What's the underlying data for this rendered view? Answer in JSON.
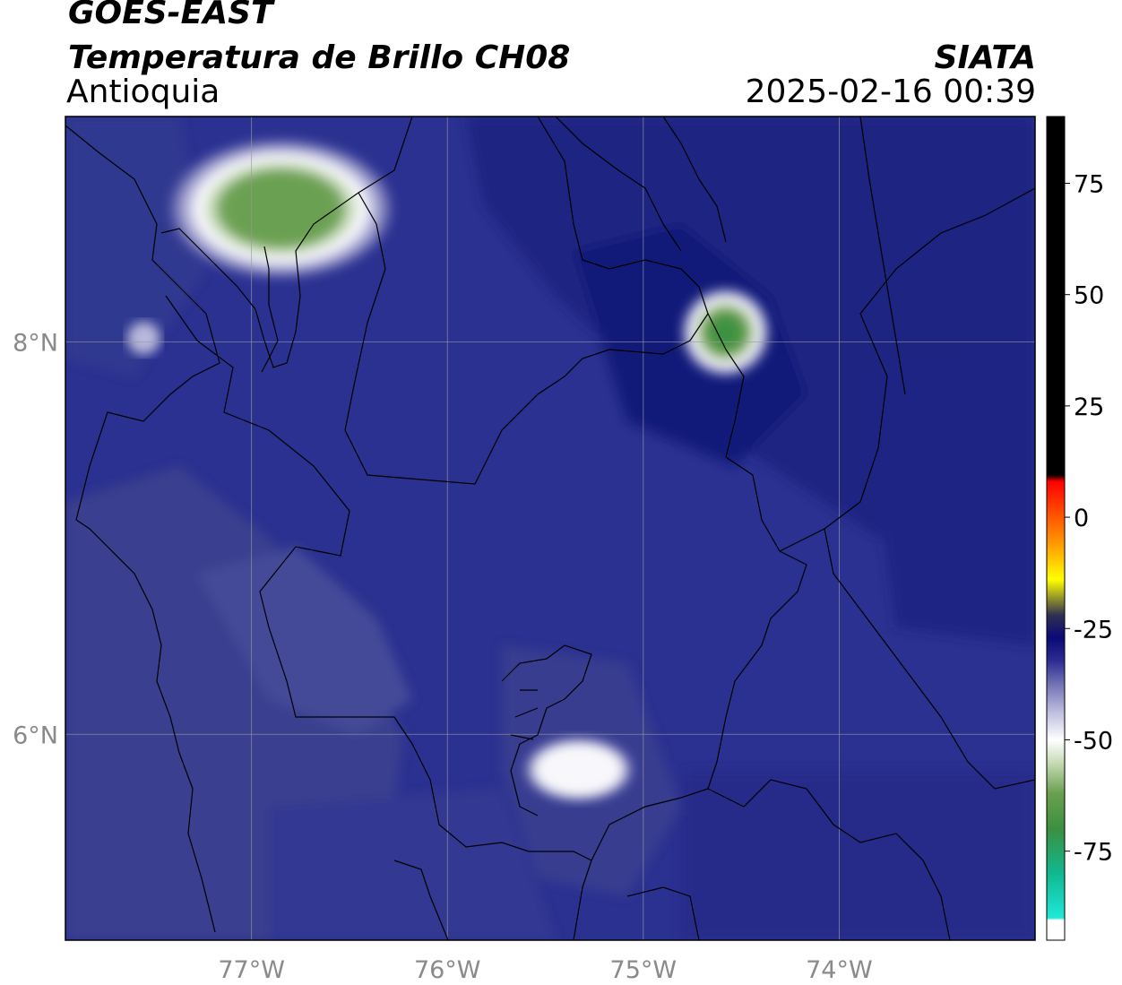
{
  "header": {
    "satellite": "GOES-EAST",
    "product": "Temperatura de Brillo CH08",
    "region": "Antioquia",
    "agency": "SIATA",
    "datetime": "2025-02-16 00:39"
  },
  "map": {
    "lon_range": [
      -77.95,
      -73.0
    ],
    "lat_range": [
      4.95,
      9.15
    ],
    "lon_ticks": [
      {
        "value": -77,
        "label": "77°W"
      },
      {
        "value": -76,
        "label": "76°W"
      },
      {
        "value": -75,
        "label": "75°W"
      },
      {
        "value": -74,
        "label": "74°W"
      }
    ],
    "lat_ticks": [
      {
        "value": 8,
        "label": "8°N"
      },
      {
        "value": 6,
        "label": "6°N"
      }
    ],
    "background_color": "#2b3190",
    "cold_cloud_features": [
      {
        "lon": -76.85,
        "lat": 8.68,
        "rx_deg": 0.45,
        "ry_deg": 0.28,
        "peak": -62
      },
      {
        "lon": -74.58,
        "lat": 8.05,
        "rx_deg": 0.18,
        "ry_deg": 0.18,
        "peak": -66
      },
      {
        "lon": -75.33,
        "lat": 5.82,
        "rx_deg": 0.22,
        "ry_deg": 0.13,
        "peak": -50
      },
      {
        "lon": -77.55,
        "lat": 8.02,
        "rx_deg": 0.07,
        "ry_deg": 0.07,
        "peak": -45
      }
    ]
  },
  "colorbar": {
    "vmin": -95,
    "vmax": 90,
    "ticks": [
      {
        "value": 75,
        "label": "75"
      },
      {
        "value": 50,
        "label": "50"
      },
      {
        "value": 25,
        "label": "25"
      },
      {
        "value": 0,
        "label": "0"
      },
      {
        "value": -25,
        "label": "-25"
      },
      {
        "value": -50,
        "label": "-50"
      },
      {
        "value": -75,
        "label": "-75"
      }
    ],
    "stops": [
      {
        "value": -95,
        "color": "#ffffff"
      },
      {
        "value": -90.5,
        "color": "#ffffff"
      },
      {
        "value": -90,
        "color": "#20e8d8"
      },
      {
        "value": -80,
        "color": "#10b890"
      },
      {
        "value": -70,
        "color": "#3a9040"
      },
      {
        "value": -62,
        "color": "#6aa050"
      },
      {
        "value": -55,
        "color": "#c8dcb8"
      },
      {
        "value": -50,
        "color": "#ffffff"
      },
      {
        "value": -44,
        "color": "#c0c0e0"
      },
      {
        "value": -38,
        "color": "#7878b8"
      },
      {
        "value": -32,
        "color": "#2a2a90"
      },
      {
        "value": -27,
        "color": "#0a0a78"
      },
      {
        "value": -22,
        "color": "#303050"
      },
      {
        "value": -14,
        "color": "#ffff00"
      },
      {
        "value": -6,
        "color": "#ff9a00"
      },
      {
        "value": 8,
        "color": "#ff0000"
      },
      {
        "value": 9.5,
        "color": "#000000"
      },
      {
        "value": 90,
        "color": "#000000"
      }
    ]
  }
}
